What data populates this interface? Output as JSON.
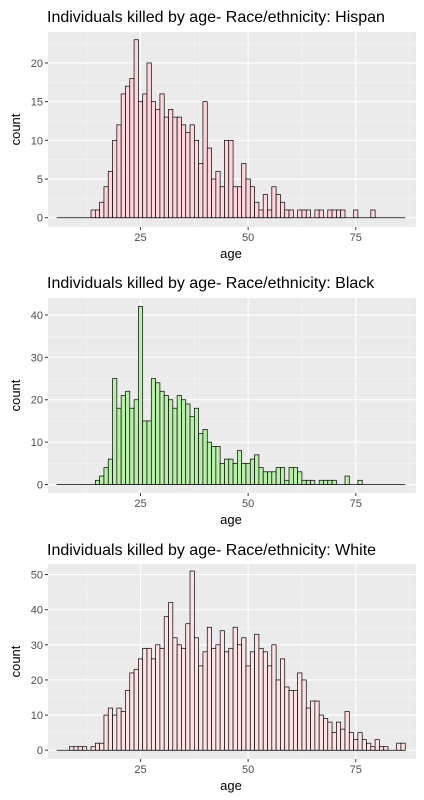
{
  "chart_data": [
    {
      "type": "bar",
      "title": "Individuals killed by age- Race/ethnicity: Hispan",
      "xlabel": "age",
      "ylabel": "count",
      "xlim": [
        3.5,
        89
      ],
      "ylim": [
        -1.2,
        24
      ],
      "xticks": [
        25,
        50,
        75
      ],
      "yticks": [
        0,
        5,
        10,
        15,
        20
      ],
      "fill": "#ffd6dc",
      "stroke": "#000000",
      "bin_width": 1,
      "baseline": [
        6,
        86
      ],
      "x": [
        14,
        15,
        16,
        17,
        18,
        19,
        20,
        21,
        22,
        23,
        24,
        25,
        26,
        27,
        28,
        29,
        30,
        31,
        32,
        33,
        34,
        35,
        36,
        37,
        38,
        39,
        40,
        41,
        42,
        43,
        44,
        45,
        46,
        47,
        48,
        49,
        50,
        51,
        52,
        53,
        54,
        55,
        56,
        57,
        58,
        59,
        60,
        62,
        63,
        64,
        66,
        67,
        69,
        70,
        71,
        72,
        75,
        79
      ],
      "values": [
        1,
        1,
        2,
        4,
        6,
        10,
        12,
        16,
        17,
        18,
        23,
        15,
        16,
        20,
        15,
        14,
        16,
        13,
        14,
        13,
        13,
        12,
        11,
        12,
        10,
        7,
        15,
        9,
        5,
        6,
        4,
        10,
        10,
        4,
        4,
        7,
        5,
        4,
        2,
        1,
        3,
        1,
        4,
        3,
        2,
        1,
        1,
        1,
        1,
        1,
        1,
        1,
        1,
        1,
        1,
        1,
        1,
        1
      ]
    },
    {
      "type": "bar",
      "title": "Individuals killed by age- Race/ethnicity: Black",
      "xlabel": "age",
      "ylabel": "count",
      "xlim": [
        3.5,
        89
      ],
      "ylim": [
        -2,
        44
      ],
      "xticks": [
        25,
        50,
        75
      ],
      "yticks": [
        0,
        10,
        20,
        30,
        40
      ],
      "fill": "#b9f0a9",
      "stroke": "#000000",
      "bin_width": 1,
      "baseline": [
        6,
        86
      ],
      "x": [
        15,
        16,
        17,
        18,
        19,
        20,
        21,
        22,
        23,
        24,
        25,
        26,
        27,
        28,
        29,
        30,
        31,
        32,
        33,
        34,
        35,
        36,
        37,
        38,
        39,
        40,
        41,
        42,
        43,
        44,
        45,
        46,
        47,
        48,
        49,
        50,
        51,
        52,
        53,
        54,
        55,
        56,
        57,
        58,
        59,
        60,
        61,
        62,
        63,
        64,
        65,
        67,
        68,
        69,
        70,
        73,
        76
      ],
      "values": [
        1,
        2,
        4,
        6,
        25,
        18,
        21,
        22,
        18,
        20,
        42,
        15,
        15,
        25,
        24,
        22,
        21,
        20,
        18,
        21,
        20,
        19,
        16,
        18,
        12,
        13,
        10,
        9,
        9,
        5,
        6,
        6,
        5,
        8,
        5,
        5,
        6,
        7,
        4,
        3,
        3,
        3,
        4,
        4,
        1,
        4,
        4,
        3,
        1,
        1,
        1,
        1,
        1,
        1,
        1,
        2,
        1
      ]
    },
    {
      "type": "bar",
      "title": "Individuals killed by age- Race/ethnicity: White",
      "xlabel": "age",
      "ylabel": "count",
      "xlim": [
        3.5,
        89
      ],
      "ylim": [
        -2.5,
        53
      ],
      "xticks": [
        25,
        50,
        75
      ],
      "yticks": [
        0,
        10,
        20,
        30,
        40,
        50
      ],
      "fill": "#fde3e3",
      "stroke": "#000000",
      "bin_width": 1,
      "baseline": [
        6,
        86
      ],
      "x": [
        9,
        10,
        11,
        12,
        13,
        14,
        15,
        16,
        17,
        18,
        19,
        20,
        21,
        22,
        23,
        24,
        25,
        26,
        27,
        28,
        29,
        30,
        31,
        32,
        33,
        34,
        35,
        36,
        37,
        38,
        39,
        40,
        41,
        42,
        43,
        44,
        45,
        46,
        47,
        48,
        49,
        50,
        51,
        52,
        53,
        54,
        55,
        56,
        57,
        58,
        59,
        60,
        61,
        62,
        63,
        64,
        65,
        66,
        67,
        68,
        69,
        70,
        71,
        72,
        73,
        74,
        75,
        76,
        77,
        78,
        79,
        80,
        81,
        82,
        83,
        84,
        85,
        86
      ],
      "values": [
        1,
        1,
        1,
        1,
        0,
        1,
        2,
        2,
        10,
        12,
        10,
        12,
        11,
        17,
        22,
        23,
        26,
        29,
        29,
        26,
        30,
        29,
        38,
        42,
        32,
        30,
        29,
        36,
        51,
        32,
        24,
        28,
        35,
        29,
        30,
        34,
        28,
        29,
        35,
        30,
        32,
        24,
        28,
        33,
        29,
        28,
        24,
        30,
        20,
        26,
        18,
        17,
        17,
        22,
        20,
        12,
        14,
        14,
        10,
        9,
        8,
        5,
        8,
        6,
        11,
        5,
        3,
        5,
        3,
        2,
        1,
        3,
        1,
        1,
        0,
        0,
        2,
        2
      ]
    }
  ]
}
